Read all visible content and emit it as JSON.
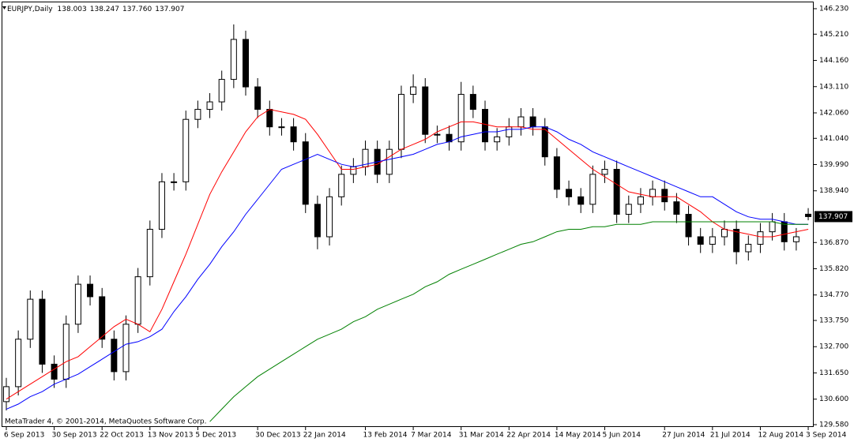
{
  "chart_data": {
    "type": "candlestick",
    "title": "EURJPY,Daily",
    "quote": {
      "open": "138.003",
      "high": "138.247",
      "low": "137.760",
      "close": "137.907"
    },
    "footer": "MetaTrader 4, © 2001-2014, MetaQuotes Software Corp.",
    "categories": [
      "6 Sep 2013",
      null,
      null,
      null,
      "30 Sep 2013",
      null,
      null,
      null,
      "22 Oct 2013",
      null,
      null,
      null,
      "13 Nov 2013",
      null,
      null,
      null,
      "5 Dec 2013",
      null,
      null,
      null,
      null,
      "30 Dec 2013",
      null,
      null,
      null,
      "22 Jan 2014",
      null,
      null,
      null,
      null,
      "13 Feb 2014",
      null,
      null,
      null,
      "7 Mar 2014",
      null,
      null,
      null,
      "31 Mar 2014",
      null,
      null,
      null,
      "22 Apr 2014",
      null,
      null,
      null,
      "14 May 2014",
      null,
      null,
      null,
      "5 Jun 2014",
      null,
      null,
      null,
      null,
      "27 Jun 2014",
      null,
      null,
      null,
      "21 Jul 2014",
      null,
      null,
      null,
      "12 Aug 2014",
      null,
      null,
      null,
      "3 Sep 2014"
    ],
    "open": [
      130.5,
      131.1,
      133.0,
      134.6,
      132.0,
      131.4,
      133.6,
      135.2,
      134.7,
      133.0,
      131.7,
      133.6,
      135.5,
      137.4,
      139.3,
      139.3,
      141.8,
      142.2,
      142.5,
      143.4,
      145.0,
      143.1,
      142.2,
      141.5,
      141.5,
      140.9,
      138.4,
      137.1,
      138.7,
      139.6,
      139.9,
      140.6,
      139.6,
      140.6,
      142.8,
      143.1,
      141.2,
      141.2,
      140.9,
      142.8,
      142.2,
      140.9,
      141.1,
      141.5,
      141.9,
      141.5,
      140.3,
      139.0,
      138.7,
      138.4,
      139.6,
      139.8,
      138.0,
      138.4,
      138.7,
      139.0,
      138.5,
      138.0,
      137.1,
      136.8,
      137.1,
      137.4,
      136.5,
      136.8,
      137.3,
      137.7,
      136.9,
      138.003
    ],
    "high": [
      131.45,
      133.35,
      134.95,
      134.95,
      132.35,
      133.95,
      135.55,
      135.55,
      135.05,
      133.35,
      133.95,
      135.85,
      137.75,
      139.65,
      139.65,
      142.15,
      142.55,
      142.85,
      143.75,
      145.6,
      145.35,
      143.45,
      142.55,
      141.85,
      141.85,
      141.25,
      138.75,
      139.05,
      139.95,
      140.25,
      140.95,
      140.95,
      140.95,
      143.15,
      143.6,
      143.45,
      141.55,
      141.55,
      143.3,
      143.15,
      142.55,
      141.45,
      141.85,
      142.25,
      142.25,
      141.85,
      140.65,
      139.35,
      139.05,
      139.95,
      140.15,
      140.15,
      138.75,
      139.05,
      139.35,
      139.35,
      138.85,
      138.35,
      137.45,
      137.45,
      137.75,
      137.75,
      137.15,
      137.65,
      138.05,
      138.05,
      137.45,
      138.247
    ],
    "low": [
      130.15,
      130.75,
      132.65,
      131.65,
      131.05,
      131.05,
      133.25,
      134.35,
      132.65,
      131.35,
      131.35,
      133.25,
      135.15,
      137.05,
      138.95,
      138.95,
      141.45,
      141.85,
      142.15,
      143.05,
      142.75,
      141.85,
      141.15,
      141.15,
      140.55,
      138.05,
      136.6,
      136.75,
      138.35,
      139.25,
      139.55,
      139.25,
      139.25,
      140.25,
      142.45,
      140.85,
      140.85,
      140.55,
      140.55,
      141.85,
      140.55,
      140.55,
      140.75,
      141.15,
      141.15,
      139.95,
      138.65,
      138.35,
      138.05,
      138.05,
      139.25,
      137.65,
      137.65,
      138.05,
      138.35,
      138.15,
      137.65,
      136.75,
      136.45,
      136.45,
      136.75,
      136.0,
      136.15,
      136.45,
      136.95,
      136.55,
      136.55,
      137.76
    ],
    "close": [
      131.1,
      133.0,
      134.6,
      132.0,
      131.4,
      133.6,
      135.2,
      134.7,
      133.0,
      131.7,
      133.6,
      135.5,
      137.4,
      139.3,
      139.3,
      141.8,
      142.2,
      142.5,
      143.4,
      145.0,
      143.1,
      142.2,
      141.5,
      141.5,
      140.9,
      138.4,
      137.1,
      138.7,
      139.6,
      139.9,
      140.6,
      139.6,
      140.6,
      142.8,
      143.1,
      141.2,
      141.2,
      140.9,
      142.8,
      142.2,
      140.9,
      141.1,
      141.5,
      141.9,
      141.5,
      140.3,
      139.0,
      138.7,
      138.4,
      139.6,
      139.8,
      138.0,
      138.4,
      138.7,
      139.0,
      138.5,
      138.0,
      137.1,
      136.8,
      137.1,
      137.4,
      136.5,
      136.8,
      137.3,
      137.7,
      136.9,
      137.1,
      137.907
    ],
    "up_color": "#ffffff",
    "down_color": "#000000",
    "lines": [
      {
        "color": "#ff0000",
        "values": [
          130.6,
          130.9,
          131.2,
          131.5,
          131.8,
          132.1,
          132.3,
          132.7,
          133.1,
          133.5,
          133.8,
          133.6,
          133.3,
          134.2,
          135.3,
          136.4,
          137.6,
          138.8,
          139.7,
          140.5,
          141.3,
          141.9,
          142.2,
          142.1,
          142.0,
          141.8,
          141.2,
          140.5,
          139.8,
          139.8,
          139.9,
          140.0,
          140.3,
          140.6,
          140.8,
          141.0,
          141.3,
          141.5,
          141.7,
          141.7,
          141.6,
          141.5,
          141.5,
          141.5,
          141.4,
          141.4,
          141.0,
          140.6,
          140.2,
          139.8,
          139.5,
          139.2,
          138.9,
          138.8,
          138.7,
          138.7,
          138.7,
          138.4,
          138.1,
          137.7,
          137.4,
          137.3,
          137.2,
          137.1,
          137.1,
          137.2,
          137.3,
          137.4
        ]
      },
      {
        "color": "#0000ff",
        "values": [
          130.2,
          130.4,
          130.7,
          130.9,
          131.2,
          131.4,
          131.6,
          131.9,
          132.2,
          132.5,
          132.8,
          132.9,
          133.1,
          133.4,
          134.1,
          134.7,
          135.4,
          136.0,
          136.7,
          137.3,
          138.0,
          138.6,
          139.2,
          139.8,
          140.0,
          140.2,
          140.4,
          140.2,
          140.0,
          139.9,
          140.0,
          140.1,
          140.2,
          140.3,
          140.4,
          140.6,
          140.8,
          140.9,
          141.1,
          141.2,
          141.3,
          141.3,
          141.4,
          141.4,
          141.5,
          141.5,
          141.3,
          141.0,
          140.8,
          140.5,
          140.3,
          140.1,
          139.9,
          139.7,
          139.5,
          139.3,
          139.1,
          138.9,
          138.7,
          138.7,
          138.4,
          138.1,
          137.9,
          137.8,
          137.8,
          137.7,
          137.6,
          137.6
        ]
      },
      {
        "color": "#008000",
        "values": [
          null,
          null,
          null,
          null,
          null,
          null,
          null,
          null,
          null,
          null,
          null,
          null,
          null,
          null,
          null,
          null,
          null,
          129.7,
          130.2,
          130.7,
          131.1,
          131.5,
          131.8,
          132.1,
          132.4,
          132.7,
          133.0,
          133.2,
          133.4,
          133.7,
          133.9,
          134.2,
          134.4,
          134.6,
          134.8,
          135.1,
          135.3,
          135.6,
          135.8,
          136.0,
          136.2,
          136.4,
          136.6,
          136.8,
          136.9,
          137.1,
          137.3,
          137.4,
          137.4,
          137.5,
          137.5,
          137.6,
          137.6,
          137.6,
          137.7,
          137.7,
          137.7,
          137.7,
          137.7,
          137.7,
          137.7,
          137.7,
          137.7,
          137.7,
          137.7,
          137.6,
          137.6,
          137.6
        ]
      }
    ],
    "ylim": [
      129.58,
      146.23
    ],
    "yticks": [
      {
        "value": 146.23,
        "label": "146.230"
      },
      {
        "value": 145.21,
        "label": "145.210"
      },
      {
        "value": 144.16,
        "label": "144.160"
      },
      {
        "value": 143.11,
        "label": "143.110"
      },
      {
        "value": 142.06,
        "label": "142.060"
      },
      {
        "value": 141.04,
        "label": "141.040"
      },
      {
        "value": 139.99,
        "label": "139.990"
      },
      {
        "value": 138.94,
        "label": "138.940"
      },
      {
        "value": 136.87,
        "label": "136.870"
      },
      {
        "value": 135.82,
        "label": "135.820"
      },
      {
        "value": 134.77,
        "label": "134.770"
      },
      {
        "value": 133.75,
        "label": "133.750"
      },
      {
        "value": 132.7,
        "label": "132.700"
      },
      {
        "value": 131.65,
        "label": "131.650"
      },
      {
        "value": 130.6,
        "label": "130.600"
      },
      {
        "value": 129.58,
        "label": "129.580"
      }
    ],
    "grid": false
  }
}
